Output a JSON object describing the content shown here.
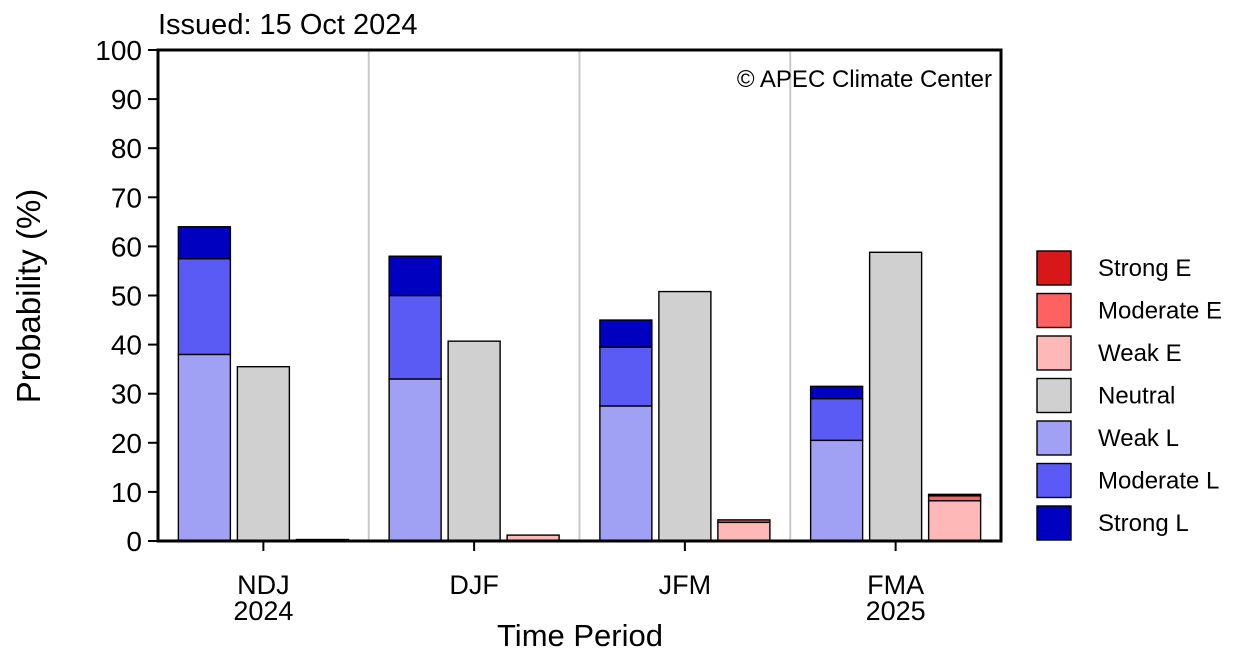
{
  "chart_data": {
    "type": "bar",
    "title": "Issued: 15 Oct 2024",
    "annotation": "© APEC Climate Center",
    "xlabel": "Time Period",
    "ylabel": "Probability (%)",
    "ylim": [
      0,
      100
    ],
    "yticks": [
      0,
      10,
      20,
      30,
      40,
      50,
      60,
      70,
      80,
      90,
      100
    ],
    "periods": [
      {
        "label": "NDJ",
        "sublabel": "2024"
      },
      {
        "label": "DJF",
        "sublabel": ""
      },
      {
        "label": "JFM",
        "sublabel": ""
      },
      {
        "label": "FMA",
        "sublabel": "2025"
      }
    ],
    "series": [
      {
        "name": "Weak L",
        "group": "la_nina",
        "color": "#a0a0f5",
        "values": [
          38,
          33,
          27.5,
          20.5
        ]
      },
      {
        "name": "Moderate L",
        "group": "la_nina",
        "color": "#5a5af5",
        "values": [
          19.5,
          17,
          12,
          8.5
        ]
      },
      {
        "name": "Strong L",
        "group": "la_nina",
        "color": "#0000c0",
        "values": [
          6.5,
          8,
          5.5,
          2.5
        ]
      },
      {
        "name": "Neutral",
        "group": "neutral",
        "color": "#d0d0d0",
        "values": [
          35.5,
          40.7,
          50.8,
          58.8
        ]
      },
      {
        "name": "Weak E",
        "group": "el_nino",
        "color": "#ffb8b8",
        "values": [
          0.3,
          1.2,
          3.8,
          8.2
        ]
      },
      {
        "name": "Moderate E",
        "group": "el_nino",
        "color": "#ff6060",
        "values": [
          0,
          0,
          0.5,
          1.0
        ]
      },
      {
        "name": "Strong E",
        "group": "el_nino",
        "color": "#d81818",
        "values": [
          0,
          0,
          0,
          0.3
        ]
      }
    ],
    "legend": {
      "placement": "right",
      "order": [
        "Strong E",
        "Moderate E",
        "Weak E",
        "Neutral",
        "Weak L",
        "Moderate L",
        "Strong L"
      ]
    },
    "grid": false,
    "separators_color": "#c8c8c8"
  }
}
